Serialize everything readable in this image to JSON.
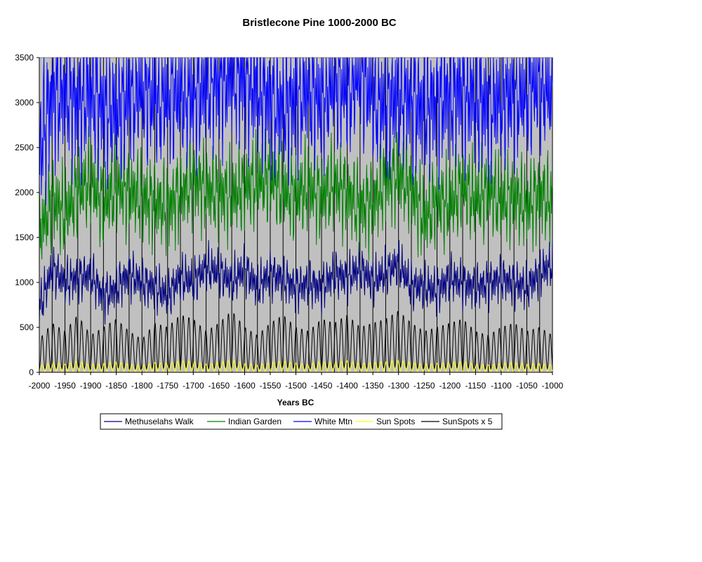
{
  "chart_data": {
    "type": "line",
    "title": "Bristlecone Pine 1000-2000 BC",
    "xlabel": "Years BC",
    "ylabel": "",
    "xlim": [
      -2000,
      -1000
    ],
    "ylim": [
      0,
      3500
    ],
    "x_ticks": [
      -2000,
      -1950,
      -1900,
      -1850,
      -1800,
      -1750,
      -1700,
      -1650,
      -1600,
      -1550,
      -1500,
      -1450,
      -1400,
      -1350,
      -1300,
      -1250,
      -1200,
      -1150,
      -1100,
      -1050,
      -1000
    ],
    "y_ticks": [
      0,
      500,
      1000,
      1500,
      2000,
      2500,
      3000,
      3500
    ],
    "vertical_gridlines_every": 25,
    "plot_background": "#c0c0c0",
    "legend_position": "bottom",
    "series": [
      {
        "name": "White Mtn",
        "color": "#0000ff",
        "x": [
          -2000,
          -1975,
          -1950,
          -1925,
          -1900,
          -1875,
          -1850,
          -1825,
          -1800,
          -1775,
          -1750,
          -1725,
          -1700,
          -1675,
          -1650,
          -1625,
          -1600,
          -1575,
          -1550,
          -1525,
          -1500,
          -1475,
          -1450,
          -1425,
          -1400,
          -1375,
          -1350,
          -1325,
          -1300,
          -1275,
          -1250,
          -1225,
          -1200,
          -1175,
          -1150,
          -1125,
          -1100,
          -1075,
          -1050,
          -1025,
          -1000
        ],
        "y": [
          2500,
          3100,
          3150,
          3000,
          3150,
          2950,
          2900,
          3050,
          3150,
          3000,
          3050,
          3100,
          3050,
          3200,
          3250,
          3350,
          3300,
          3150,
          3050,
          2950,
          3050,
          3150,
          3000,
          3250,
          3100,
          3350,
          3050,
          2950,
          3100,
          3050,
          2950,
          3050,
          3100,
          3150,
          3050,
          2950,
          3050,
          3050,
          3100,
          3200,
          3100
        ]
      },
      {
        "name": "Indian Garden",
        "color": "#008000",
        "x": [
          -2000,
          -1975,
          -1950,
          -1925,
          -1900,
          -1875,
          -1850,
          -1825,
          -1800,
          -1775,
          -1750,
          -1725,
          -1700,
          -1675,
          -1650,
          -1625,
          -1600,
          -1575,
          -1550,
          -1525,
          -1500,
          -1475,
          -1450,
          -1425,
          -1400,
          -1375,
          -1350,
          -1325,
          -1300,
          -1275,
          -1250,
          -1225,
          -1200,
          -1175,
          -1150,
          -1125,
          -1100,
          -1075,
          -1050,
          -1025,
          -1000
        ],
        "y": [
          1550,
          1900,
          1750,
          2000,
          2100,
          1850,
          2050,
          2000,
          1950,
          1900,
          1850,
          2000,
          2150,
          2050,
          2000,
          1950,
          2050,
          2100,
          2150,
          2000,
          1950,
          2050,
          1950,
          2100,
          2000,
          1850,
          1900,
          2150,
          2200,
          2050,
          1700,
          1900,
          1850,
          2050,
          1900,
          2000,
          1900,
          1950,
          1850,
          2000,
          1900
        ]
      },
      {
        "name": "Methuselahs Walk",
        "color": "#000080",
        "x": [
          -2000,
          -1975,
          -1950,
          -1925,
          -1900,
          -1875,
          -1850,
          -1825,
          -1800,
          -1775,
          -1750,
          -1725,
          -1700,
          -1675,
          -1650,
          -1625,
          -1600,
          -1575,
          -1550,
          -1525,
          -1500,
          -1475,
          -1450,
          -1425,
          -1400,
          -1375,
          -1350,
          -1325,
          -1300,
          -1275,
          -1250,
          -1225,
          -1200,
          -1175,
          -1150,
          -1125,
          -1100,
          -1075,
          -1050,
          -1025,
          -1000
        ],
        "y": [
          700,
          1150,
          1000,
          1050,
          1100,
          850,
          950,
          1100,
          1000,
          950,
          850,
          1050,
          1000,
          1150,
          1100,
          1000,
          1150,
          950,
          1100,
          1050,
          950,
          1000,
          950,
          1100,
          1050,
          1150,
          1000,
          1100,
          1200,
          950,
          950,
          900,
          1050,
          1000,
          950,
          1000,
          1050,
          1000,
          950,
          1100,
          1200
        ]
      },
      {
        "name": "Sun Spots",
        "color": "#ffff00",
        "x": [
          -2000,
          -1975,
          -1950,
          -1925,
          -1900,
          -1875,
          -1850,
          -1825,
          -1800,
          -1775,
          -1750,
          -1725,
          -1700,
          -1675,
          -1650,
          -1625,
          -1600,
          -1575,
          -1550,
          -1525,
          -1500,
          -1475,
          -1450,
          -1425,
          -1400,
          -1375,
          -1350,
          -1325,
          -1300,
          -1275,
          -1250,
          -1225,
          -1200,
          -1175,
          -1150,
          -1125,
          -1100,
          -1075,
          -1050,
          -1025,
          -1000
        ],
        "y": [
          40,
          60,
          50,
          70,
          45,
          55,
          65,
          50,
          40,
          60,
          55,
          70,
          65,
          50,
          60,
          75,
          55,
          45,
          60,
          70,
          55,
          50,
          65,
          60,
          70,
          55,
          60,
          65,
          75,
          60,
          50,
          55,
          60,
          65,
          50,
          45,
          55,
          60,
          50,
          55,
          45
        ]
      },
      {
        "name": "SunSpots x 5",
        "color": "#000000",
        "x": [
          -2000,
          -1975,
          -1950,
          -1925,
          -1900,
          -1875,
          -1850,
          -1825,
          -1800,
          -1775,
          -1750,
          -1725,
          -1700,
          -1675,
          -1650,
          -1625,
          -1600,
          -1575,
          -1550,
          -1525,
          -1500,
          -1475,
          -1450,
          -1425,
          -1400,
          -1375,
          -1350,
          -1325,
          -1300,
          -1275,
          -1250,
          -1225,
          -1200,
          -1175,
          -1150,
          -1125,
          -1100,
          -1075,
          -1050,
          -1025,
          -1000
        ],
        "y": [
          200,
          300,
          250,
          350,
          225,
          275,
          325,
          250,
          200,
          300,
          275,
          350,
          325,
          250,
          300,
          375,
          275,
          225,
          300,
          350,
          275,
          250,
          325,
          300,
          350,
          275,
          300,
          325,
          375,
          300,
          250,
          275,
          300,
          325,
          250,
          225,
          275,
          300,
          250,
          275,
          225
        ]
      }
    ],
    "legend_order": [
      "Methuselahs Walk",
      "Indian Garden",
      "White Mtn",
      "Sun Spots",
      "SunSpots x 5"
    ]
  }
}
